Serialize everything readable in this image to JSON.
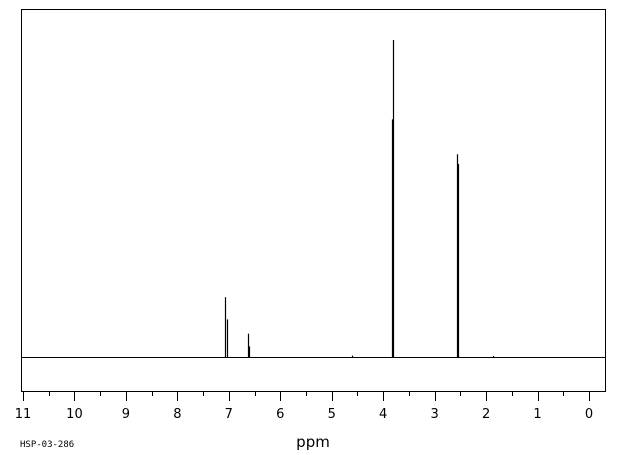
{
  "chart_data": {
    "type": "line",
    "title": "",
    "xlabel": "ppm",
    "ylabel": "",
    "xlim": [
      11,
      0
    ],
    "x_reversed": true,
    "grid": false,
    "ticks": [
      "11",
      "10",
      "9",
      "8",
      "7",
      "6",
      "5",
      "4",
      "3",
      "2",
      "1",
      "0"
    ],
    "code_label": "HSP-03-286",
    "baseline": 0,
    "ylim": [
      -0.12,
      1.0
    ],
    "peaks": [
      {
        "shift": 7.07,
        "height": 0.19
      },
      {
        "shift": 7.04,
        "height": 0.12
      },
      {
        "shift": 6.63,
        "height": 0.075
      },
      {
        "shift": 6.6,
        "height": 0.035
      },
      {
        "shift": 4.61,
        "height": 0.006
      },
      {
        "shift": 3.83,
        "height": 0.75
      },
      {
        "shift": 3.81,
        "height": 1.0
      },
      {
        "shift": 2.57,
        "height": 0.64
      },
      {
        "shift": 2.55,
        "height": 0.61
      },
      {
        "shift": 1.86,
        "height": 0.004
      }
    ]
  }
}
